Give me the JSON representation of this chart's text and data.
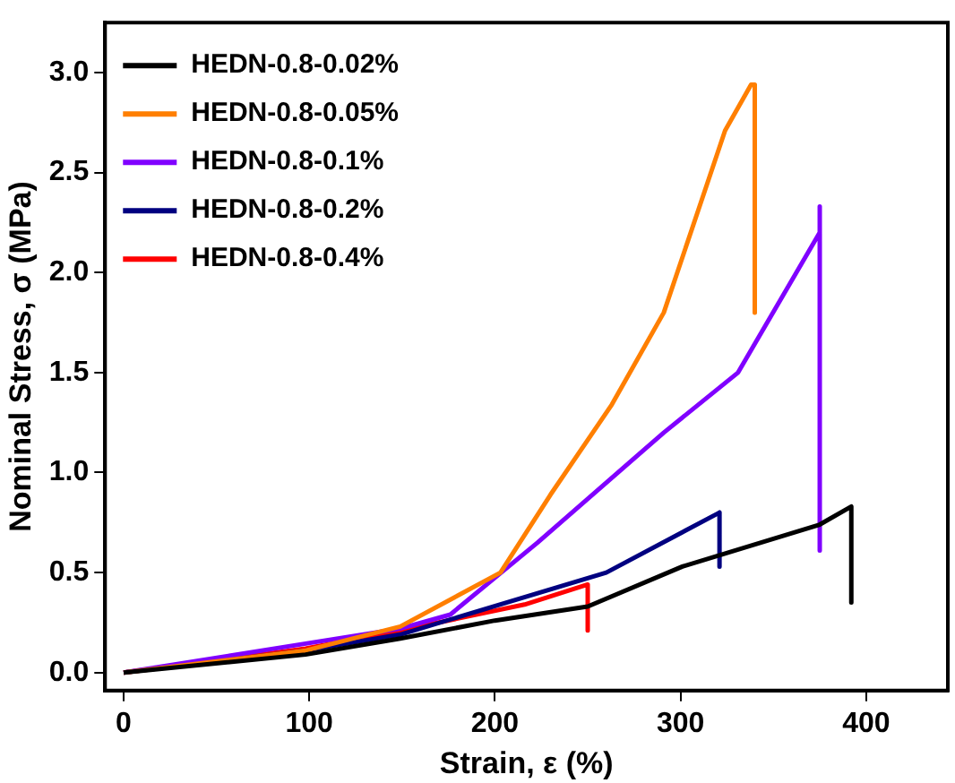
{
  "chart_data": {
    "type": "line",
    "xlabel": "Strain, ε (%)",
    "ylabel": "Nominal Stress, σ (MPa)",
    "xlim": [
      -10,
      444
    ],
    "ylim": [
      -0.09,
      3.25
    ],
    "xticks": [
      0,
      100,
      200,
      300,
      400
    ],
    "yticks": [
      {
        "value": 0,
        "label": "0.0"
      },
      {
        "value": 0.5,
        "label": "0.5"
      },
      {
        "value": 1,
        "label": "1.0"
      },
      {
        "value": 1.5,
        "label": "1.5"
      },
      {
        "value": 2,
        "label": "2.0"
      },
      {
        "value": 2.5,
        "label": "2.5"
      },
      {
        "value": 3,
        "label": "3.0"
      }
    ],
    "grid": false,
    "legend": "top left",
    "marker": "none",
    "line_style": "solid",
    "series": [
      {
        "name": "HEDN-0.8-0.02%",
        "color": "#000000",
        "x": [
          0,
          98,
          149,
          200,
          250,
          301,
          375,
          392,
          392
        ],
        "values": [
          0,
          0.09,
          0.17,
          0.26,
          0.33,
          0.53,
          0.74,
          0.83,
          0.35
        ]
      },
      {
        "name": "HEDN-0.8-0.05%",
        "color": "#ff7f00",
        "x": [
          0,
          98,
          149,
          203,
          230,
          263,
          291,
          324,
          338,
          340,
          340
        ],
        "values": [
          0,
          0.11,
          0.23,
          0.5,
          0.89,
          1.34,
          1.8,
          2.71,
          2.94,
          2.94,
          1.8
        ]
      },
      {
        "name": "HEDN-0.8-0.1%",
        "color": "#8000ff",
        "x": [
          0,
          149,
          176,
          223,
          291,
          331,
          375,
          375,
          375
        ],
        "values": [
          0,
          0.22,
          0.29,
          0.65,
          1.2,
          1.5,
          2.2,
          2.33,
          0.61
        ]
      },
      {
        "name": "HEDN-0.8-0.2%",
        "color": "#000080",
        "x": [
          0,
          98,
          149,
          260,
          321,
          321
        ],
        "values": [
          0,
          0.11,
          0.19,
          0.5,
          0.8,
          0.53
        ]
      },
      {
        "name": "HEDN-0.8-0.4%",
        "color": "#ff0000",
        "x": [
          0,
          98,
          149,
          216,
          250,
          250
        ],
        "values": [
          0,
          0.12,
          0.21,
          0.34,
          0.44,
          0.21
        ]
      }
    ]
  }
}
